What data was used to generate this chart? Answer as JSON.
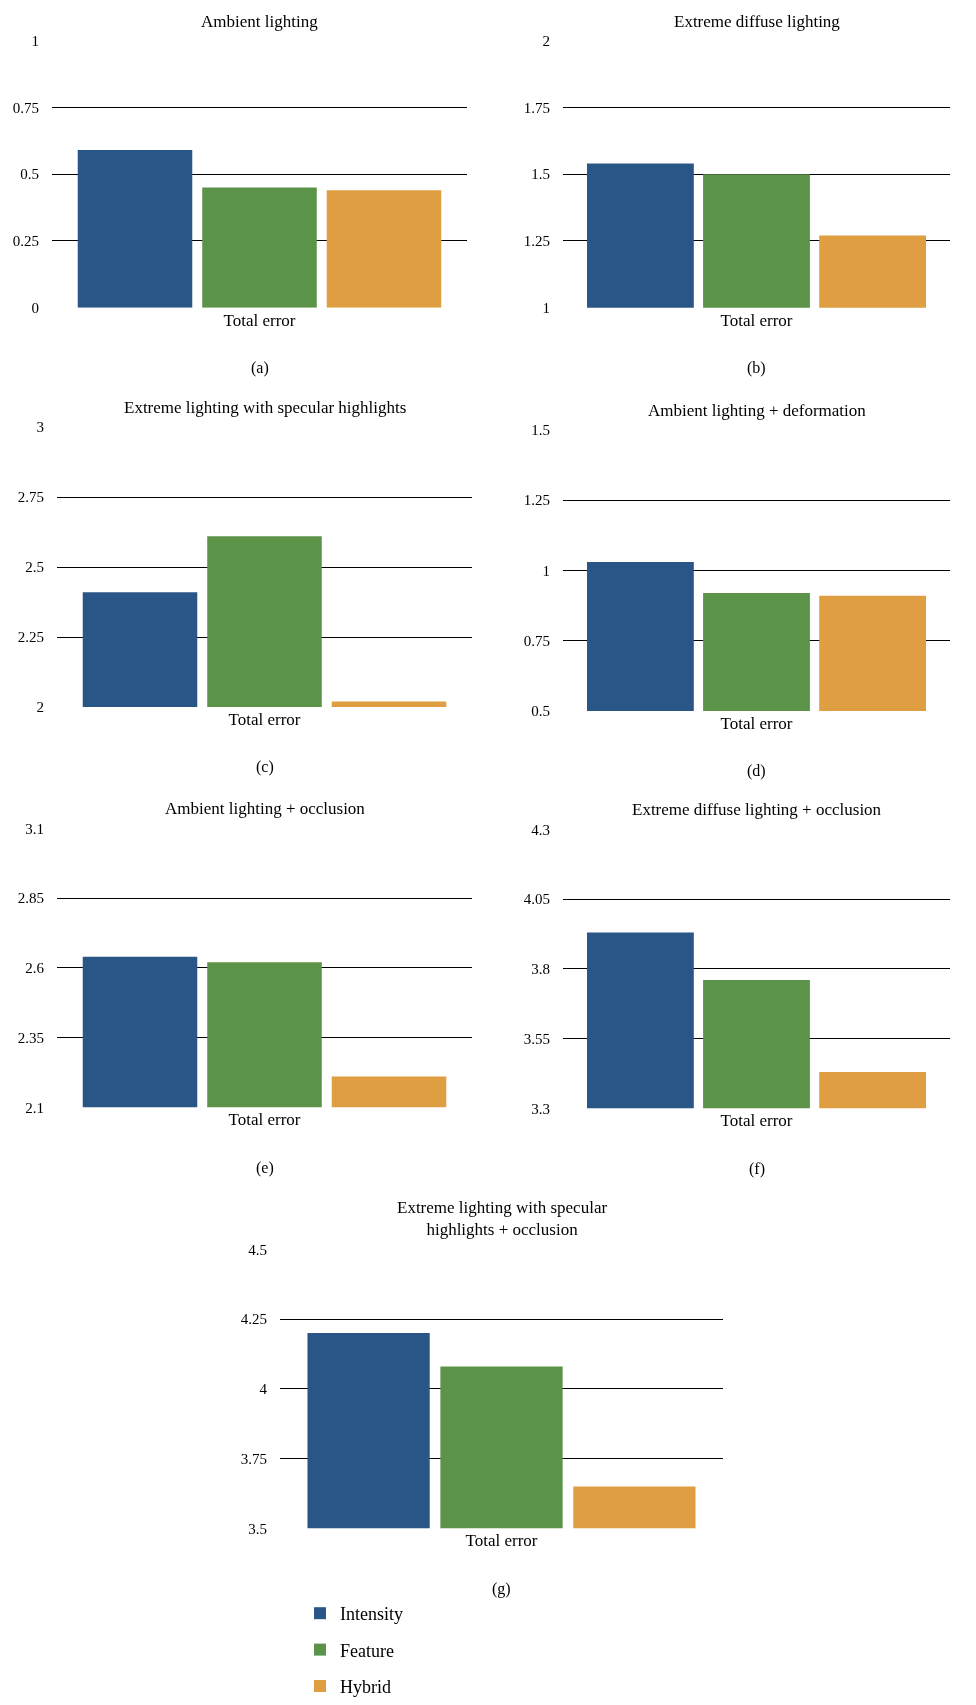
{
  "chart_data": [
    {
      "type": "bar",
      "title": "Ambient lighting",
      "categories": [
        "Total error"
      ],
      "series": [
        {
          "color": "#2a5587",
          "values": [
            0.59
          ]
        },
        {
          "color": "#5b9349",
          "values": [
            0.45
          ]
        },
        {
          "color": "#e09e42",
          "values": [
            0.44
          ]
        }
      ],
      "ylim": [
        0,
        1
      ],
      "yticks": [
        0,
        0.25,
        0.5,
        0.75,
        1
      ],
      "grid": "y",
      "annotations": [
        "(a)"
      ]
    },
    {
      "type": "bar",
      "title": "Extreme diffuse lighting",
      "categories": [
        "Total error"
      ],
      "series": [
        {
          "color": "#2a5587",
          "values": [
            1.54
          ]
        },
        {
          "color": "#5b9349",
          "values": [
            1.5
          ]
        },
        {
          "color": "#e09e42",
          "values": [
            1.27
          ]
        }
      ],
      "ylim": [
        1,
        2
      ],
      "yticks": [
        1,
        1.25,
        1.5,
        1.75,
        2
      ],
      "grid": "y",
      "annotations": [
        "(b)"
      ]
    },
    {
      "type": "bar",
      "title": "Extreme lighting with specular highlights",
      "categories": [
        "Total error"
      ],
      "series": [
        {
          "color": "#2a5587",
          "values": [
            2.41
          ]
        },
        {
          "color": "#5b9349",
          "values": [
            2.61
          ]
        },
        {
          "color": "#e09e42",
          "values": [
            2.02
          ]
        }
      ],
      "ylim": [
        2,
        3
      ],
      "yticks": [
        2,
        2.25,
        2.5,
        2.75,
        3
      ],
      "grid": "y",
      "annotations": [
        "(c)"
      ]
    },
    {
      "type": "bar",
      "title": "Ambient lighting + deformation",
      "categories": [
        "Total error"
      ],
      "series": [
        {
          "color": "#2a5587",
          "values": [
            1.03
          ]
        },
        {
          "color": "#5b9349",
          "values": [
            0.92
          ]
        },
        {
          "color": "#e09e42",
          "values": [
            0.91
          ]
        }
      ],
      "ylim": [
        0.5,
        1.5
      ],
      "yticks": [
        0.5,
        0.75,
        1,
        1.25,
        1.5
      ],
      "grid": "y",
      "annotations": [
        "(d)"
      ]
    },
    {
      "type": "bar",
      "title": "Ambient lighting + occlusion",
      "categories": [
        "Total error"
      ],
      "series": [
        {
          "color": "#2a5587",
          "values": [
            2.64
          ]
        },
        {
          "color": "#5b9349",
          "values": [
            2.62
          ]
        },
        {
          "color": "#e09e42",
          "values": [
            2.21
          ]
        }
      ],
      "ylim": [
        2.1,
        3.1
      ],
      "yticks": [
        2.1,
        2.35,
        2.6,
        2.85,
        3.1
      ],
      "grid": "y",
      "annotations": [
        "(e)"
      ]
    },
    {
      "type": "bar",
      "title": "Extreme diffuse lighting + occlusion",
      "categories": [
        "Total error"
      ],
      "series": [
        {
          "color": "#2a5587",
          "values": [
            3.93
          ]
        },
        {
          "color": "#5b9349",
          "values": [
            3.76
          ]
        },
        {
          "color": "#e09e42",
          "values": [
            3.43
          ]
        }
      ],
      "ylim": [
        3.3,
        4.3
      ],
      "yticks": [
        3.3,
        3.55,
        3.8,
        4.05,
        4.3
      ],
      "grid": "y",
      "annotations": [
        "(f)"
      ]
    },
    {
      "type": "bar",
      "title": "Extreme lighting with specular highlights + occlusion",
      "categories": [
        "Total error"
      ],
      "series": [
        {
          "name": "Intensity",
          "color": "#2a5587",
          "values": [
            4.2
          ]
        },
        {
          "name": "Feature",
          "color": "#5b9349",
          "values": [
            4.08
          ]
        },
        {
          "name": "Hybrid",
          "color": "#e09e42",
          "values": [
            3.65
          ]
        }
      ],
      "ylim": [
        3.5,
        4.5
      ],
      "yticks": [
        3.5,
        3.75,
        4,
        4.25,
        4.5
      ],
      "grid": "y",
      "legend": "bottom",
      "annotations": [
        "(g)"
      ]
    }
  ]
}
